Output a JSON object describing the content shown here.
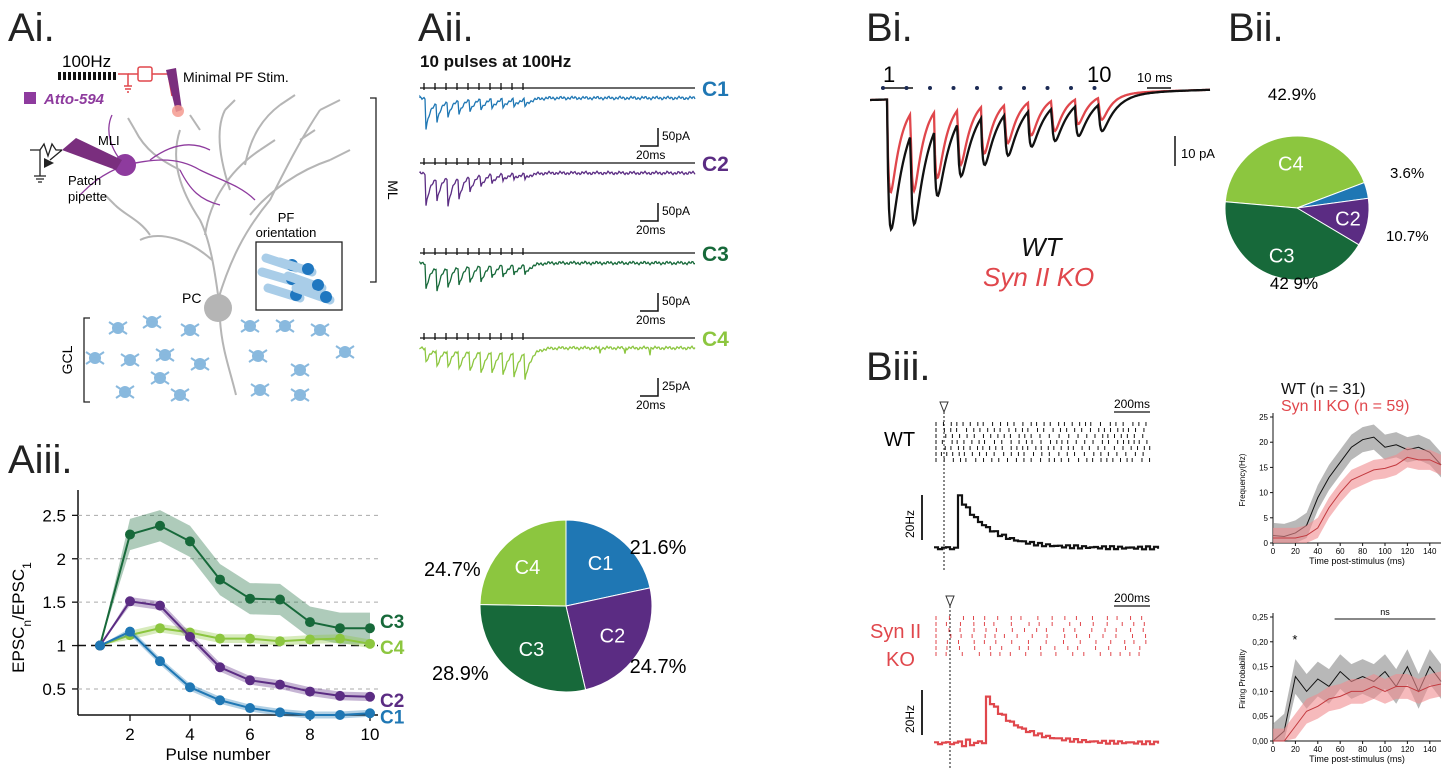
{
  "panels": {
    "ai": "Ai.",
    "aii": "Aii.",
    "aiii": "Aiii.",
    "bi": "Bi.",
    "bii": "Bii.",
    "biii": "Biii."
  },
  "colors": {
    "c1": "#1f77b4",
    "c2": "#5b2c83",
    "c3": "#17693a",
    "c4": "#8cc63f",
    "wt": "#111111",
    "ko": "#e0474c",
    "purple": "#8e3b9e",
    "gcl": "#89b9de",
    "pc": "#b5b5b5"
  },
  "ai": {
    "stim_freq": "100Hz",
    "dye": "Atto-594",
    "stim_label": "Minimal PF Stim.",
    "mli": "MLI",
    "patch": "Patch",
    "pipette": "pipette",
    "pf": "PF",
    "orientation": "orientation",
    "ml": "ML",
    "pc": "PC",
    "gcl": "GCL"
  },
  "aii": {
    "title": "10 pulses at 100Hz",
    "traces": [
      {
        "name": "C1",
        "scale": "50pA",
        "time": "20ms"
      },
      {
        "name": "C2",
        "scale": "50pA",
        "time": "20ms"
      },
      {
        "name": "C3",
        "scale": "50pA",
        "time": "20ms"
      },
      {
        "name": "C4",
        "scale": "25pA",
        "time": "20ms"
      }
    ]
  },
  "chart_data": [
    {
      "type": "line",
      "panel": "Aiii",
      "xlabel": "Pulse number",
      "ylabel": "EPSC_n/EPSC_1",
      "x": [
        1,
        2,
        3,
        4,
        5,
        6,
        7,
        8,
        9,
        10
      ],
      "xticks": [
        "2",
        "4",
        "6",
        "8",
        "10"
      ],
      "yticks": [
        "0.5",
        "1",
        "1.5",
        "2",
        "2.5"
      ],
      "ylim": [
        0.2,
        2.7
      ],
      "series": [
        {
          "name": "C3",
          "values": [
            1.0,
            2.28,
            2.38,
            2.2,
            1.76,
            1.54,
            1.53,
            1.27,
            1.2,
            1.2
          ]
        },
        {
          "name": "C4",
          "values": [
            1.0,
            1.12,
            1.2,
            1.15,
            1.08,
            1.08,
            1.05,
            1.07,
            1.08,
            1.02
          ]
        },
        {
          "name": "C2",
          "values": [
            1.0,
            1.51,
            1.46,
            1.1,
            0.75,
            0.6,
            0.55,
            0.47,
            0.42,
            0.41
          ]
        },
        {
          "name": "C1",
          "values": [
            1.0,
            1.16,
            0.82,
            0.52,
            0.37,
            0.28,
            0.23,
            0.2,
            0.2,
            0.22
          ]
        }
      ]
    },
    {
      "type": "pie",
      "panel": "Aiii",
      "slices": [
        {
          "label": "C1",
          "value": 21.6,
          "text": "21.6%"
        },
        {
          "label": "C2",
          "value": 24.7,
          "text": "24.7%"
        },
        {
          "label": "C3",
          "value": 28.9,
          "text": "28.9%"
        },
        {
          "label": "C4",
          "value": 24.7,
          "text": "24.7%"
        }
      ]
    },
    {
      "type": "pie",
      "panel": "Bii",
      "slices": [
        {
          "label": "C4",
          "value": 42.9,
          "text": "42.9%"
        },
        {
          "label": "",
          "value": 3.6,
          "text": "3.6%"
        },
        {
          "label": "C2",
          "value": 10.7,
          "text": "10.7%"
        },
        {
          "label": "C3",
          "value": 42.9,
          "text": "42 9%"
        }
      ]
    },
    {
      "type": "line",
      "panel": "Biii-top",
      "xlabel": "Time post-stimulus (ms)",
      "ylabel": "Frequency(Hz)",
      "x": [
        0,
        10,
        20,
        30,
        40,
        50,
        60,
        70,
        80,
        90,
        100,
        110,
        120,
        130,
        140,
        150
      ],
      "xticks": [
        "0",
        "20",
        "40",
        "60",
        "80",
        "100",
        "120",
        "140"
      ],
      "yticks": [
        "0",
        "5",
        "10",
        "15",
        "20",
        "25"
      ],
      "ylim": [
        0,
        25
      ],
      "series": [
        {
          "name": "WT (n = 31)",
          "values": [
            1.5,
            1.3,
            2.0,
            3.5,
            9.0,
            13.0,
            16.0,
            19.0,
            20.5,
            21.0,
            19.0,
            19.5,
            18.5,
            19.0,
            18.0,
            15.5
          ]
        },
        {
          "name": "Syn II KO (n = 59)",
          "values": [
            1.0,
            1.0,
            1.0,
            1.5,
            3.0,
            7.0,
            10.0,
            12.5,
            13.5,
            14.5,
            14.8,
            15.5,
            17.0,
            16.5,
            16.5,
            15.5
          ]
        }
      ]
    },
    {
      "type": "line",
      "panel": "Biii-bottom",
      "xlabel": "Time post-stimulus (ms)",
      "ylabel": "Firing Probability",
      "x": [
        0,
        10,
        20,
        30,
        40,
        50,
        60,
        70,
        80,
        90,
        100,
        110,
        120,
        130,
        140,
        150
      ],
      "xticks": [
        "0",
        "20",
        "40",
        "60",
        "80",
        "100",
        "120",
        "140"
      ],
      "yticks": [
        "0,00",
        "0,05",
        "0,10",
        "0,15",
        "0,20",
        "0,25"
      ],
      "ylim": [
        0,
        0.25
      ],
      "annotations": {
        "star": "*",
        "ns": "ns"
      },
      "series": [
        {
          "name": "WT",
          "values": [
            0.0,
            0.02,
            0.13,
            0.1,
            0.125,
            0.11,
            0.14,
            0.12,
            0.13,
            0.12,
            0.14,
            0.11,
            0.15,
            0.1,
            0.15,
            0.12
          ]
        },
        {
          "name": "Syn II KO",
          "values": [
            0.0,
            0.0,
            0.03,
            0.06,
            0.07,
            0.085,
            0.09,
            0.1,
            0.1,
            0.11,
            0.1,
            0.11,
            0.11,
            0.1,
            0.11,
            0.115
          ]
        }
      ]
    }
  ],
  "bi": {
    "start": "1",
    "end": "10",
    "time_scale": "10 ms",
    "amp_scale": "10 pA",
    "wt": "WT",
    "ko": "Syn II KO"
  },
  "biii": {
    "wt": "WT",
    "ko_line1": "Syn II",
    "ko_line2": "KO",
    "time_scale": "200ms",
    "rate_scale": "20Hz",
    "legend_wt": "WT (n = 31)",
    "legend_ko": "Syn II KO (n = 59)"
  }
}
